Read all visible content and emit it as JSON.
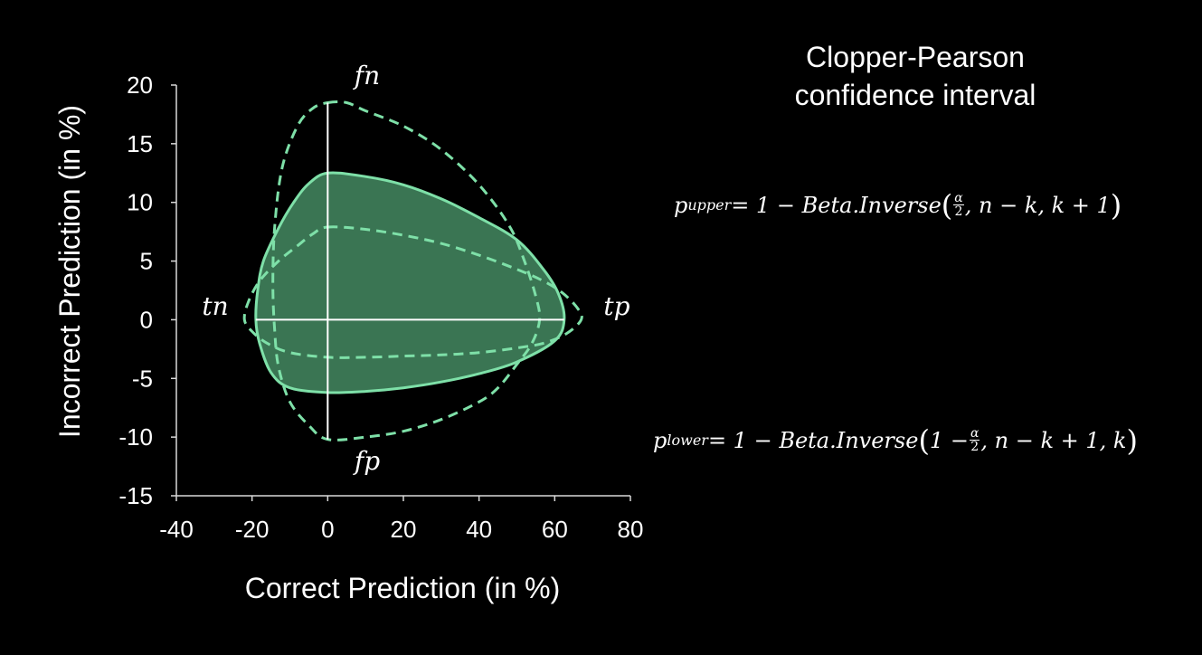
{
  "title_lines": [
    "Clopper-Pearson",
    "confidence interval"
  ],
  "formulas": {
    "upper": {
      "lhs": "p",
      "sub": "upper",
      "mid": " = 1 − Beta.Inverse",
      "frac_num": "α",
      "frac_den": "2",
      "args": ", n − k, k + 1"
    },
    "lower": {
      "lhs": "p",
      "sub": "lower",
      "mid": " = 1 − Beta.Inverse",
      "pre": "1 − ",
      "frac_num": "α",
      "frac_den": "2",
      "args": ", n − k + 1, k"
    }
  },
  "chart_data": {
    "type": "area",
    "xlabel": "Correct Prediction (in %)",
    "ylabel": "Incorrect Prediction (in %)",
    "xlim": [
      -40,
      80
    ],
    "ylim": [
      -15,
      20
    ],
    "xticks": [
      -40,
      -20,
      0,
      20,
      40,
      60,
      80
    ],
    "yticks": [
      -15,
      -10,
      -5,
      0,
      5,
      10,
      15,
      20
    ],
    "grid": false,
    "quadrant_axes": true,
    "axis_endpoint_labels": {
      "top": "fn",
      "bottom": "fp",
      "left": "tn",
      "right": "tp"
    },
    "series": [
      {
        "style": "filled-solid",
        "color": "#7ee0a8",
        "fill": "#3a7553",
        "points": [
          [
            0,
            12.5
          ],
          [
            10,
            12.2
          ],
          [
            20,
            11.5
          ],
          [
            30,
            10.3
          ],
          [
            40,
            8.7
          ],
          [
            50,
            6.8
          ],
          [
            57,
            4.3
          ],
          [
            61,
            2.2
          ],
          [
            62.5,
            0
          ],
          [
            60,
            -1.8
          ],
          [
            50,
            -3.6
          ],
          [
            40,
            -4.6
          ],
          [
            30,
            -5.3
          ],
          [
            20,
            -5.8
          ],
          [
            10,
            -6.1
          ],
          [
            0,
            -6.2
          ],
          [
            -10,
            -5.8
          ],
          [
            -15,
            -4.5
          ],
          [
            -18,
            -2.0
          ],
          [
            -19,
            0
          ],
          [
            -18.5,
            2.5
          ],
          [
            -17,
            5.0
          ],
          [
            -13,
            7.8
          ],
          [
            -9,
            10.0
          ],
          [
            -5,
            11.6
          ]
        ]
      },
      {
        "style": "dashed",
        "color": "#7ee0a8",
        "points": [
          [
            0,
            18.5
          ],
          [
            5,
            18.5
          ],
          [
            10,
            17.8
          ],
          [
            20,
            16.5
          ],
          [
            30,
            14.5
          ],
          [
            40,
            11.5
          ],
          [
            48,
            8.0
          ],
          [
            52,
            5.0
          ],
          [
            55,
            2.0
          ],
          [
            56,
            0
          ],
          [
            54,
            -2.0
          ],
          [
            50,
            -3.8
          ],
          [
            45,
            -5.8
          ],
          [
            40,
            -7.0
          ],
          [
            30,
            -8.5
          ],
          [
            20,
            -9.5
          ],
          [
            10,
            -10.0
          ],
          [
            0,
            -10.2
          ],
          [
            -5,
            -9.0
          ],
          [
            -10,
            -7.0
          ],
          [
            -13,
            -4.0
          ],
          [
            -14,
            -1.0
          ],
          [
            -14.5,
            3.0
          ],
          [
            -14,
            8.0
          ],
          [
            -12,
            13.0
          ],
          [
            -8,
            16.5
          ],
          [
            -4,
            18.0
          ]
        ]
      },
      {
        "style": "dashed",
        "color": "#7ee0a8",
        "points": [
          [
            0,
            7.9
          ],
          [
            10,
            7.7
          ],
          [
            20,
            7.2
          ],
          [
            30,
            6.5
          ],
          [
            40,
            5.5
          ],
          [
            50,
            4.3
          ],
          [
            57,
            3.3
          ],
          [
            62,
            2.3
          ],
          [
            66,
            1.0
          ],
          [
            67,
            0
          ],
          [
            63,
            -1.2
          ],
          [
            57,
            -2.0
          ],
          [
            50,
            -2.4
          ],
          [
            40,
            -2.8
          ],
          [
            30,
            -3.0
          ],
          [
            20,
            -3.1
          ],
          [
            10,
            -3.2
          ],
          [
            0,
            -3.2
          ],
          [
            -10,
            -2.8
          ],
          [
            -16,
            -2.0
          ],
          [
            -20,
            -1.0
          ],
          [
            -22,
            0
          ],
          [
            -21,
            1.5
          ],
          [
            -18,
            3.3
          ],
          [
            -13,
            5.0
          ],
          [
            -8,
            6.3
          ],
          [
            -4,
            7.3
          ]
        ]
      }
    ]
  }
}
